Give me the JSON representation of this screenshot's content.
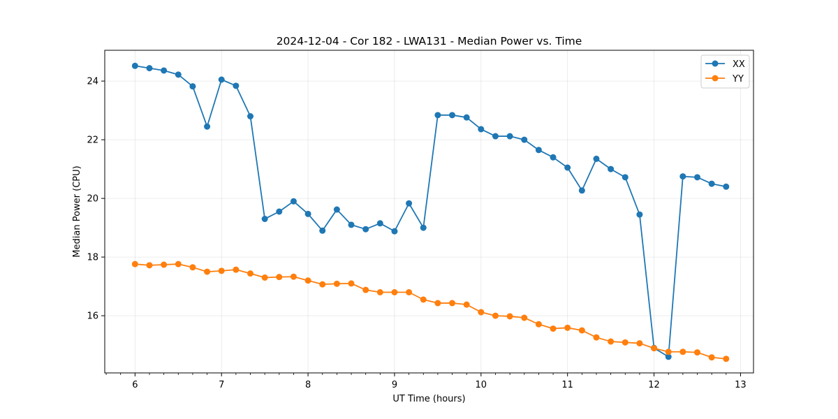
{
  "chart_data": {
    "type": "line",
    "title": "2024-12-04 - Cor 182 - LWA131 - Median Power vs. Time",
    "xlabel": "UT Time (hours)",
    "ylabel": "Median Power (CPU)",
    "xlim": [
      5.65,
      13.15
    ],
    "ylim": [
      14.05,
      25.05
    ],
    "xticks": [
      6,
      7,
      8,
      9,
      10,
      11,
      12,
      13
    ],
    "yticks": [
      16,
      18,
      20,
      22,
      24
    ],
    "minor_xtick_step": 0.16667,
    "grid": true,
    "legend_position": "upper right",
    "series": [
      {
        "name": "XX",
        "color": "#1f77b4",
        "marker": "circle",
        "x": [
          6.0,
          6.1667,
          6.3333,
          6.5,
          6.6667,
          6.8333,
          7.0,
          7.1667,
          7.3333,
          7.5,
          7.6667,
          7.8333,
          8.0,
          8.1667,
          8.3333,
          8.5,
          8.6667,
          8.8333,
          9.0,
          9.1667,
          9.3333,
          9.5,
          9.6667,
          9.8333,
          10.0,
          10.1667,
          10.3333,
          10.5,
          10.6667,
          10.8333,
          11.0,
          11.1667,
          11.3333,
          11.5,
          11.6667,
          11.8333,
          12.0,
          12.1667,
          12.3333,
          12.5,
          12.6667,
          12.8333
        ],
        "y": [
          24.52,
          24.44,
          24.36,
          24.22,
          23.82,
          22.45,
          24.05,
          23.84,
          22.8,
          19.3,
          19.55,
          19.9,
          19.47,
          18.9,
          19.62,
          19.1,
          18.95,
          19.15,
          18.88,
          19.83,
          19.0,
          22.84,
          22.84,
          22.76,
          22.36,
          22.12,
          22.12,
          22.0,
          21.65,
          21.4,
          21.05,
          20.27,
          21.35,
          21.0,
          20.72,
          19.45,
          14.9,
          14.6,
          20.75,
          20.72,
          20.5,
          20.4
        ]
      },
      {
        "name": "YY",
        "color": "#ff7f0e",
        "marker": "circle",
        "x": [
          6.0,
          6.1667,
          6.3333,
          6.5,
          6.6667,
          6.8333,
          7.0,
          7.1667,
          7.3333,
          7.5,
          7.6667,
          7.8333,
          8.0,
          8.1667,
          8.3333,
          8.5,
          8.6667,
          8.8333,
          9.0,
          9.1667,
          9.3333,
          9.5,
          9.6667,
          9.8333,
          10.0,
          10.1667,
          10.3333,
          10.5,
          10.6667,
          10.8333,
          11.0,
          11.1667,
          11.3333,
          11.5,
          11.6667,
          11.8333,
          12.0,
          12.1667,
          12.3333,
          12.5,
          12.6667,
          12.8333
        ],
        "y": [
          17.76,
          17.72,
          17.74,
          17.76,
          17.65,
          17.5,
          17.53,
          17.57,
          17.44,
          17.3,
          17.32,
          17.33,
          17.2,
          17.07,
          17.09,
          17.1,
          16.88,
          16.8,
          16.8,
          16.8,
          16.55,
          16.43,
          16.43,
          16.38,
          16.12,
          16.0,
          15.98,
          15.93,
          15.71,
          15.56,
          15.59,
          15.5,
          15.26,
          15.12,
          15.09,
          15.06,
          14.89,
          14.77,
          14.77,
          14.75,
          14.58,
          14.53
        ]
      }
    ]
  }
}
